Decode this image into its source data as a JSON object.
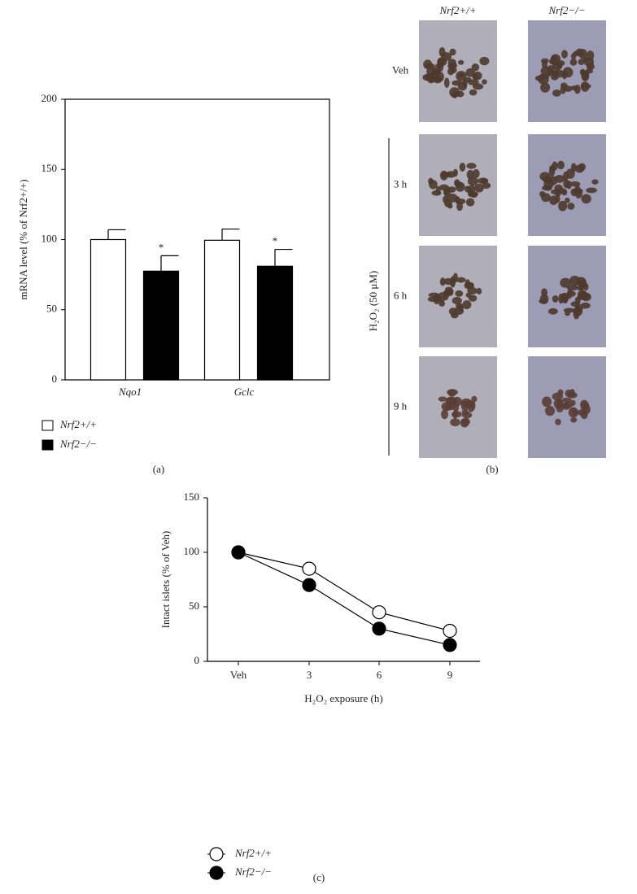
{
  "chart_data": [
    {
      "type": "bar",
      "panel_label": "(a)",
      "y_label": "mRNA level (% of Nrf2+/+)",
      "categories": [
        "Nqo1",
        "Gclc"
      ],
      "series": [
        {
          "name": "Nrf2+/+",
          "color": "#ffffff",
          "values": [
            100,
            99.5
          ],
          "errors": [
            7,
            8
          ]
        },
        {
          "name": "Nrf2−/−",
          "color": "#000000",
          "values": [
            77.5,
            81
          ],
          "errors": [
            11,
            12
          ],
          "annotations": [
            "*",
            "*"
          ]
        }
      ],
      "ylim": [
        0,
        200
      ],
      "yticks": [
        0,
        50,
        100,
        150,
        200
      ]
    },
    {
      "type": "line",
      "panel_label": "(c)",
      "y_label": "Intact islets (% of Veh)",
      "x_label": "H₂O₂ exposure (h)",
      "categories": [
        "Veh",
        "3",
        "6",
        "9"
      ],
      "series": [
        {
          "name": "Nrf2+/+",
          "color": "#ffffff",
          "values": [
            100,
            85,
            45,
            28
          ]
        },
        {
          "name": "Nrf2−/−",
          "color": "#000000",
          "values": [
            100,
            70,
            30,
            15
          ]
        }
      ],
      "ylim": [
        0,
        150
      ],
      "yticks": [
        0,
        50,
        100,
        150
      ]
    }
  ],
  "image_panel": {
    "panel_label": "(b)",
    "columns": [
      "Nrf2+/+",
      "Nrf2−/−"
    ],
    "rows": [
      "Veh",
      "3 h",
      "6 h",
      "9 h"
    ],
    "treatment_label": "H₂O₂ (50 μM)"
  }
}
